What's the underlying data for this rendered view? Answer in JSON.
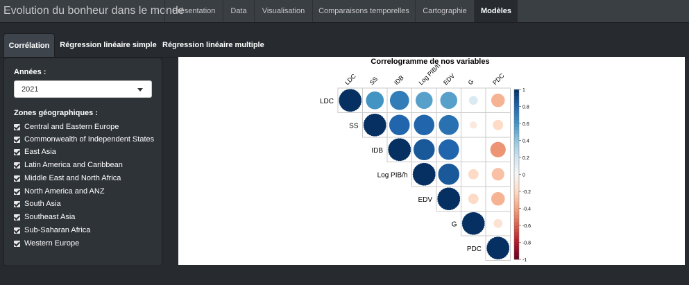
{
  "navbar": {
    "brand": "Evolution du bonheur dans le monde",
    "items": [
      {
        "label": "Présentation",
        "active": false
      },
      {
        "label": "Data",
        "active": false
      },
      {
        "label": "Visualisation",
        "active": false
      },
      {
        "label": "Comparaisons temporelles",
        "active": false
      },
      {
        "label": "Cartographie",
        "active": false
      },
      {
        "label": "Modèles",
        "active": true
      }
    ]
  },
  "tabs": [
    {
      "label": "Corrélation",
      "active": true
    },
    {
      "label": "Régression linéaire simple",
      "active": false
    },
    {
      "label": "Régression linéaire multiple",
      "active": false
    }
  ],
  "sidebar": {
    "years_label": "Années :",
    "year_selected": "2021",
    "zones_label": "Zones géographiques :",
    "zones": [
      {
        "label": "Central and Eastern Europe",
        "checked": true
      },
      {
        "label": "Commonwealth of Independent States",
        "checked": true
      },
      {
        "label": "East Asia",
        "checked": true
      },
      {
        "label": "Latin America and Caribbean",
        "checked": true
      },
      {
        "label": "Middle East and North Africa",
        "checked": true
      },
      {
        "label": "North America and ANZ",
        "checked": true
      },
      {
        "label": "South Asia",
        "checked": true
      },
      {
        "label": "Southeast Asia",
        "checked": true
      },
      {
        "label": "Sub-Saharan Africa",
        "checked": true
      },
      {
        "label": "Western Europe",
        "checked": true
      }
    ]
  },
  "chart_data": {
    "type": "heatmap",
    "title": "Correlogramme de nos variables",
    "variables": [
      "LDC",
      "SS",
      "IDB",
      "Log PIB/h",
      "EDV",
      "G",
      "PDC"
    ],
    "matrix": [
      [
        1.0,
        0.6,
        0.7,
        0.55,
        0.55,
        0.15,
        -0.35
      ],
      [
        0.6,
        1.0,
        0.8,
        0.8,
        0.75,
        -0.1,
        -0.2
      ],
      [
        0.7,
        0.8,
        1.0,
        0.85,
        0.8,
        0.0,
        -0.45
      ],
      [
        0.55,
        0.8,
        0.85,
        1.0,
        0.85,
        -0.2,
        -0.3
      ],
      [
        0.55,
        0.75,
        0.8,
        0.85,
        1.0,
        -0.2,
        -0.35
      ],
      [
        0.15,
        -0.1,
        0.0,
        -0.2,
        -0.2,
        1.0,
        -0.15
      ],
      [
        -0.35,
        -0.2,
        -0.45,
        -0.3,
        -0.35,
        -0.15,
        1.0
      ]
    ],
    "colorbar_ticks": [
      "1",
      "0.8",
      "0.6",
      "0.4",
      "0.2",
      "0",
      "-0.2",
      "-0.4",
      "-0.6",
      "-0.8",
      "-1"
    ],
    "scale": [
      -1,
      1
    ],
    "colors": {
      "negative": "#67001f",
      "mid": "#ffffff",
      "positive": "#053061"
    }
  }
}
